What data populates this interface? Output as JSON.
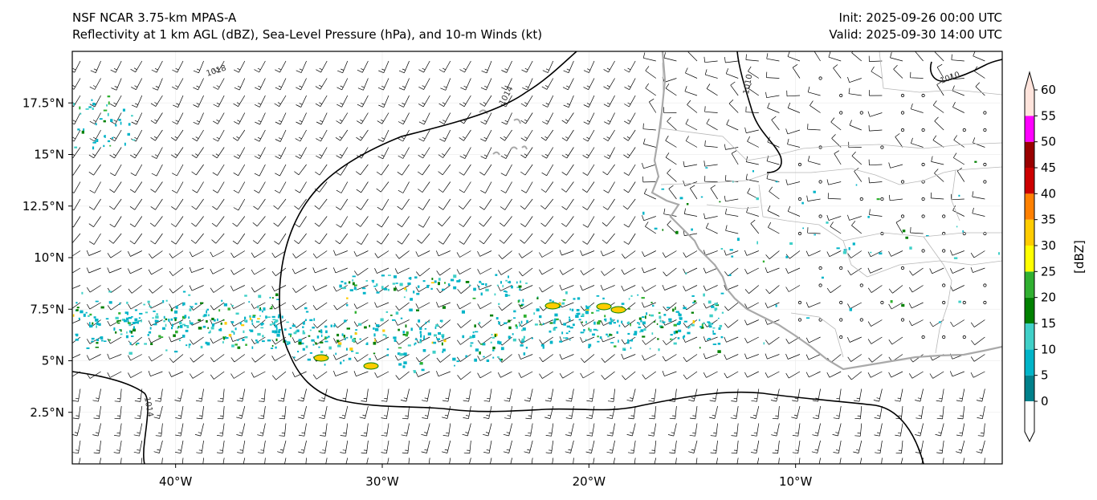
{
  "header": {
    "model": "NSF NCAR 3.75-km MPAS-A",
    "fields": "Reflectivity at 1 km AGL (dBZ), Sea-Level Pressure (hPa), and 10-m Winds (kt)",
    "init": "Init: 2025-09-26 00:00 UTC",
    "valid": "Valid: 2025-09-30 14:00 UTC"
  },
  "map": {
    "lon_range": [
      -45,
      0
    ],
    "lat_range": [
      0,
      20
    ],
    "lon_ticks": [
      {
        "lon": -40,
        "label": "40°W"
      },
      {
        "lon": -30,
        "label": "30°W"
      },
      {
        "lon": -20,
        "label": "20°W"
      },
      {
        "lon": -10,
        "label": "10°W"
      }
    ],
    "lat_ticks": [
      {
        "lat": 2.5,
        "label": "2.5°N"
      },
      {
        "lat": 5,
        "label": "5°N"
      },
      {
        "lat": 7.5,
        "label": "7.5°N"
      },
      {
        "lat": 10,
        "label": "10°N"
      },
      {
        "lat": 12.5,
        "label": "12.5°N"
      },
      {
        "lat": 15,
        "label": "15°N"
      },
      {
        "lat": 17.5,
        "label": "17.5°N"
      }
    ],
    "isobar_labels": [
      "1018",
      "1014",
      "1010",
      "1010",
      "1014"
    ],
    "coastline_color": "#a9a9a9",
    "isobar_color": "#000000"
  },
  "colorbar": {
    "label": "[dBZ]",
    "ticks": [
      "0",
      "5",
      "10",
      "15",
      "20",
      "25",
      "30",
      "35",
      "40",
      "45",
      "50",
      "55",
      "60"
    ],
    "colors": [
      "#ffffff",
      "#00808a",
      "#00b4c8",
      "#40d0c8",
      "#008000",
      "#30b030",
      "#ffff00",
      "#ffcc00",
      "#ff8000",
      "#cc0000",
      "#990000",
      "#ff00ff",
      "#ffe4dc"
    ]
  }
}
